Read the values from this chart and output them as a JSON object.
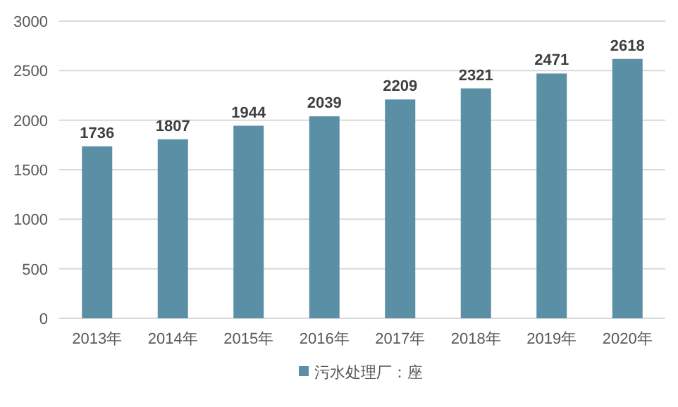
{
  "chart_data": {
    "type": "bar",
    "categories": [
      "2013年",
      "2014年",
      "2015年",
      "2016年",
      "2017年",
      "2018年",
      "2019年",
      "2020年"
    ],
    "series": [
      {
        "name": "污水处理厂：座",
        "color": "#5b8fa5",
        "values": [
          1736,
          1807,
          1944,
          2039,
          2209,
          2321,
          2471,
          2618
        ]
      }
    ],
    "ylim": [
      0,
      3000
    ],
    "yticks": [
      0,
      500,
      1000,
      1500,
      2000,
      2500,
      3000
    ],
    "grid": "y",
    "legend": "bottom",
    "data_labels": true
  }
}
